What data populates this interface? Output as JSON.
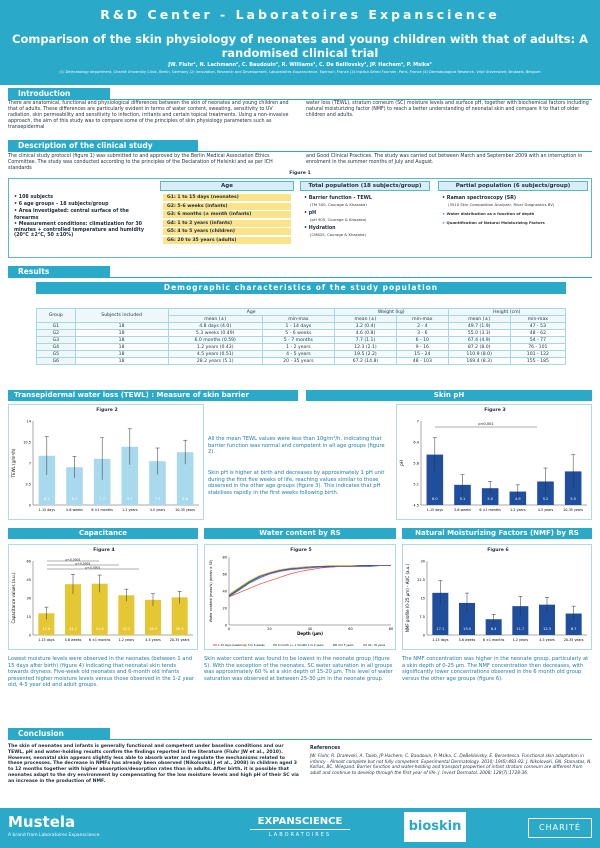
{
  "header": {
    "center": "R&D Center   -   Laboratoires Expanscience",
    "title": "Comparison of the skin physiology of neonates and young children with that of adults: A randomised clinical trial",
    "authors": "JW. Fluhr¹, N. Lachmann², C. Baudouin³, R. Williams³, C. De Belilovsky³, JP. Hachem⁴, P. Msika³",
    "affils": "(1) Dermatology department, Charité University Clinic, Berlin, Germany (2) Innovation, Research and Development, Laboratoires Expanscience, Epernon, France (3) Institut Alfred Fournier, Paris, France (4) Dermatological Research, Vrije Universiteit, Brussels, Belgium"
  },
  "intro": {
    "heading": "Introduction",
    "left": "There are anatomical, functional and physiological differences between the skin of neonates and young children and that of adults. These differences are particularly evident in terms of water content, sweating, sensitivity to UV radiation, skin permeability and sensitivity to infection, irritants and certain topical treatments. Using a non-invasive approach, the aim of this study was to compare some of the principles of skin physiology parameters such as transepidermal",
    "right": "water loss (TEWL), stratum corneum (SC) moisture levels and surface pH, together with biochemical factors including natural moisturizing factor (NMF) to reach a better understanding of neonatal skin and compare it to that of older children and adults."
  },
  "study": {
    "heading": "Description of the clinical study",
    "left": "The clinical study protocol (figure 1) was submitted to and approved by the Berlin Medical Association Ethics Committee. The study was conducted according to the principles of the Declaration of Helsinki and as per ICH standards",
    "right": "and Good Clinical Practices. The study was carried out between March and September 2009 with an interruption in enrolment in the summer months of July and August.",
    "figure_label": "Figure 1",
    "bullets": [
      "108 subjects",
      "6 age groups – 18 subjects/group",
      "Area investigated: central surface of the forearms",
      "Measurement conditions: climatization for 30 minutes + controlled temperature and humidity (20°C ±2°C, 50 ±10%)"
    ],
    "age_head": "Age",
    "ages": [
      "G1: 1 to 15 days (neonates)",
      "G2: 5-6 weeks (infants)",
      "G3: 6 months (± month (infants)",
      "G4: 1 to 2 years (infants)",
      "G5: 4 to 5 years (children)",
      "G6: 20 to 35 years (adults)"
    ],
    "total_head": "Total population (18 subjects/group)",
    "total_items": [
      {
        "name": "Barrier function - TEWL",
        "sub": "(TM 300, Courage & Khazaka)"
      },
      {
        "name": "pH",
        "sub": "(pH 905, Courage & Khazaka)"
      },
      {
        "name": "Hydration",
        "sub": "(CM825, Courage & Khazaka)"
      }
    ],
    "partial_head": "Partial population (6 subjects/group)",
    "partial_items": {
      "name": "Raman spectroscopy (SR)",
      "sub": "(3510 Skin Composition Analyzer, River Diagnostics BV)",
      "arrows": [
        "Water distribution as a function of depth",
        "Quantification of Natural Moisturizing Factors"
      ]
    }
  },
  "results": {
    "heading": "Results",
    "table_title": "Demographic characteristics of the study population",
    "table_head": {
      "group": "Group",
      "subjects": "Subjects included",
      "age": "Age",
      "weight": "Weight (kg)",
      "height": "Height (cm)",
      "mean": "mean (±)",
      "minmax": "min-max"
    },
    "rows": [
      [
        "G1",
        "18",
        "4.8 days (4.0)",
        "1 - 14 days",
        "3.2 (0.4)",
        "2 - 4",
        "49.7 (1.9)",
        "47 - 53"
      ],
      [
        "G2",
        "18",
        "5.3 weeks (0.49)",
        "5 - 6 weeks",
        "4.6 (0.8)",
        "3 - 6",
        "55.0 (3.3)",
        "48 - 62"
      ],
      [
        "G3",
        "18",
        "6.0 months (0.59)",
        "5 - 7 months",
        "7.7 (1.1)",
        "6 - 10",
        "67.4 (4.9)",
        "54 - 77"
      ],
      [
        "G4",
        "18",
        "1.2 years (0.43)",
        "1 - 2 years",
        "12.3 (2.1)",
        "9 - 16",
        "87.2 (8.0)",
        "76 - 101"
      ],
      [
        "G5",
        "18",
        "4.5 years (0.51)",
        "4 - 5 years",
        "19.5 (2.2)",
        "15 - 24",
        "110.9 (8.0)",
        "101 - 122"
      ],
      [
        "G6",
        "18",
        "28.2 years (5.1)",
        "20 - 35 years",
        "67.2 (14.8)",
        "48 - 103",
        "169.4 (8.3)",
        "155 - 185"
      ]
    ]
  },
  "tewl": {
    "heading": "Transepidermal water loss (TEWL) : Measure of skin barrier permeability",
    "figure": "Figure 2",
    "ylabel": "TEWL (g/m²/h)",
    "text1": "All the mean TEWL values were less than 10g/m²/h, indicating that barrier function was normal and competent in all age groups (figure 2).",
    "text2": "Skin pH is higher at birth and decreases by approximately 1 pH unit during the first five weeks of life, reaching values similar to those observed in the other age groups (figure 3). This indicates that pH stabilises rapidly in the first weeks following birth."
  },
  "ph": {
    "heading": "Skin pH",
    "figure": "Figure 3",
    "ylabel": "pH",
    "pval": "p<0.001"
  },
  "cap": {
    "heading": "Capacitance",
    "figure": "Figure 4",
    "ylabel": "Capacitance values (a.u.)",
    "text": "Lowest moisture levels were observed in the neonates (between 1 and 15 days after birth) (figure 4) indicating that neonatal skin tends towards dryness. Five-week old neonates and 6-month old infants presented higher moisture levels versus those observed in the 1-2 year old, 4-5 year old and adult groups.",
    "pvals": [
      "p<0.0001",
      "p<0.0001",
      "p<0.0001"
    ]
  },
  "water": {
    "heading": "Water content by RS",
    "figure": "Figure 5",
    "ylabel": "Water content (mass%) (mean ± SE)",
    "xlabel": "Depth (µm)",
    "legend": [
      "1-15 days (newborns)",
      "5 to 6 weeks",
      "6 month +/- 1 month",
      "1 to 2 years",
      "4 to 5 years",
      "20 - 35 years"
    ],
    "text": "Skin water content was found to be lowest in the neonate group (figure 5). With the exception of the neonates, SC water saturation in all groups was approximately 60 % at a skin depth of 15-20 µm. This level of water saturation was observed at between 25-30 µm in the neonate group."
  },
  "nmf": {
    "heading": "Natural Moisturizing Factors (NMF) by RS",
    "figure": "Figure 6",
    "ylabel": "NMF profile (0-25 µm) - AUC (a.u.)",
    "text": "The NMF concentration was higher in the neonate group, particularly at a skin depth of 0-25 µm. The NMF concentration then decreases, with significantly lower concentrations observed in the 6 month old group versus the other age groups (figure 6)."
  },
  "chart_data": [
    {
      "type": "bar",
      "title": "Figure 2",
      "ylabel": "TEWL (g/m²/h)",
      "categories": [
        "1-15 days",
        "5-6 weeks",
        "6 ±1 months",
        "1-2 years",
        "4-5 years",
        "20-35 years"
      ],
      "values": [
        8.2,
        6.3,
        7.7,
        9.7,
        7.3,
        8.8
      ],
      "errors": [
        3.2,
        1.8,
        3.5,
        3.0,
        2.2,
        2.0
      ],
      "ylim": [
        0,
        14
      ]
    },
    {
      "type": "bar",
      "title": "Figure 3",
      "ylabel": "pH",
      "categories": [
        "1-15 days",
        "5-6 weeks",
        "6 ±1 months",
        "1-2 years",
        "4-5 years",
        "20-35 years"
      ],
      "values": [
        6.0,
        5.1,
        5.0,
        4.9,
        5.2,
        5.5
      ],
      "errors": [
        0.5,
        0.3,
        0.2,
        0.2,
        0.4,
        0.5
      ],
      "ylim": [
        4.5,
        7
      ]
    },
    {
      "type": "bar",
      "title": "Figure 4",
      "ylabel": "Capacitance values (a.u.)",
      "categories": [
        "1-15 days",
        "5-6 weeks",
        "6 ±1 months",
        "1-2 years",
        "4-5 years",
        "20-35 years"
      ],
      "values": [
        17.6,
        41.2,
        41.6,
        32.2,
        28.5,
        30.5
      ],
      "errors": [
        5,
        8,
        7,
        5,
        5,
        5
      ],
      "ylim": [
        0,
        60
      ]
    },
    {
      "type": "line",
      "title": "Figure 5",
      "xlabel": "Depth (µm)",
      "ylabel": "Water content (mass%) (mean ± SE)",
      "x": [
        0,
        5,
        10,
        15,
        20,
        25,
        30,
        35,
        40,
        45,
        50,
        55,
        60,
        65,
        70,
        75,
        80
      ],
      "series": [
        {
          "name": "1-15 days (newborns)",
          "values": [
            33,
            38,
            43,
            48,
            52,
            56,
            60,
            63,
            65,
            67,
            68,
            69,
            69,
            70,
            70,
            70,
            70
          ]
        },
        {
          "name": "5 to 6 weeks",
          "values": [
            36,
            44,
            52,
            58,
            62,
            65,
            67,
            68,
            69,
            69,
            70,
            70,
            70,
            70,
            70,
            70,
            70
          ]
        },
        {
          "name": "6 month +/- 1 month",
          "values": [
            35,
            43,
            51,
            57,
            61,
            64,
            66,
            67,
            68,
            68,
            69,
            69,
            69,
            69,
            70,
            70,
            70
          ]
        },
        {
          "name": "1 to 2 years",
          "values": [
            34,
            42,
            50,
            56,
            60,
            63,
            65,
            67,
            68,
            68,
            69,
            69,
            69,
            69,
            69,
            70,
            70
          ]
        },
        {
          "name": "4 to 5 years",
          "values": [
            34,
            42,
            50,
            57,
            61,
            64,
            66,
            67,
            68,
            69,
            69,
            69,
            69,
            70,
            70,
            70,
            70
          ]
        },
        {
          "name": "20 - 35 years",
          "values": [
            33,
            41,
            49,
            55,
            60,
            63,
            65,
            66,
            67,
            68,
            68,
            69,
            69,
            69,
            69,
            70,
            70
          ]
        }
      ],
      "ylim": [
        0,
        80
      ]
    },
    {
      "type": "bar",
      "title": "Figure 6",
      "ylabel": "NMF profile (0-25 µm) - AUC (a.u.)",
      "categories": [
        "1-15 days",
        "5-6 weeks",
        "6 ±1 months",
        "1-2 years",
        "4-5 years",
        "20-35 years"
      ],
      "values": [
        17.1,
        13.0,
        6.4,
        11.7,
        12.3,
        8.7
      ],
      "errors": [
        5,
        4,
        2,
        4,
        3,
        3
      ],
      "ylim": [
        0,
        30
      ]
    }
  ],
  "conclusion": {
    "heading": "Conclusion",
    "text": "The skin of neonates and infants is generally functional and competent under baseline conditions and our TEWL, pH and water-holding results confirm the findings reported in the literature (Fluhr JW et al., 2010). However, neonatal skin appears slightly less able to absorb water and regulate the mechanisms related to these processes. The decrease in NMFs has already been observed (Nikolovski J et al., 2008) in children aged 3 to 12 months together with higher absorption/desorption rates than in adults. After birth, it is possible that neonates adapt to the dry environment by compensating for the low moisture levels and high pH of their SC via an increase in the production of NMF.",
    "refs_title": "References",
    "refs": "JW. Fluhr, R. Dralevski, A. Taieb, JP Hachem, C. Baudouin, P. Msika, C. DeBelilovsky, E. Berardesca. Functional skin adaptation in infancy - Almost complete but not fully competent. Experimental Dermatology. 2010; 19(6):483-92. J. Nikolovski, GN. Stamatas, N. Kollias, BC. Wiegand. Barrier function and water-holding and transport properties of infant stratum corneum are different from adult and continue to develop through the first year of life. J. Invest Dermatol. 2008; 128(7):1728-36."
  },
  "footer": {
    "mustela": "Mustela",
    "mustela_sub": "A brand from Laboratoires Expanscience",
    "exp": "EXPANSCIENCE",
    "exp_sub": "LABORATOIRES",
    "bioskin": "bioskin",
    "charite": "CHARITÉ"
  }
}
